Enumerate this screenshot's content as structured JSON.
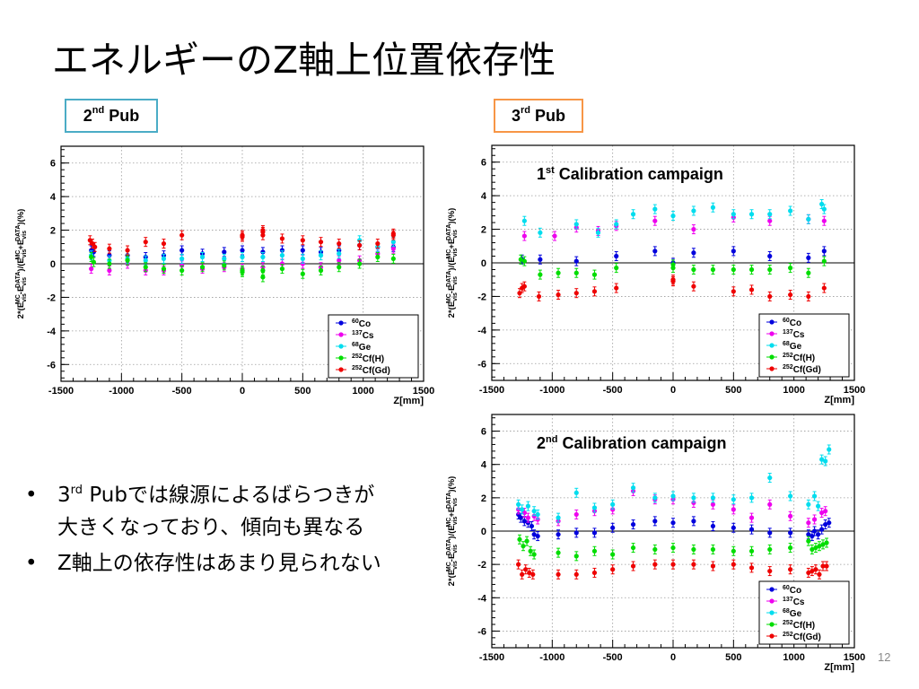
{
  "slide": {
    "title": "エネルギーのZ軸上位置依存性",
    "page_number": "12",
    "pub2": {
      "main": "2",
      "sup": "nd",
      "rest": " Pub"
    },
    "pub3": {
      "main": "3",
      "sup": "rd",
      "rest": " Pub"
    },
    "bullets": [
      {
        "lines": [
          {
            "pre": "3",
            "sup": "rd",
            "post": " Pubでは線源によるばらつきが"
          },
          {
            "pre": "大きくなっており、傾向も異なる",
            "sup": "",
            "post": ""
          }
        ]
      },
      {
        "lines": [
          {
            "pre": "Z軸上の依存性はあまり見られない",
            "sup": "",
            "post": ""
          }
        ]
      }
    ]
  },
  "chart_data": [
    {
      "type": "scatter",
      "annotation": "",
      "annotation_sup": "",
      "annotation_rest": "",
      "xlabel": "Z[mm]",
      "ylabel": "2*(E_vis^MC - E_vis^DATA)/(E_vis^MC + E_vis^DATA)(%)",
      "xlim": [
        -1500,
        1500
      ],
      "ylim": [
        -7,
        7
      ],
      "xticks": [
        -1500,
        -1000,
        -500,
        0,
        500,
        1000,
        1500
      ],
      "yticks": [
        -6,
        -4,
        -2,
        0,
        2,
        4,
        6
      ],
      "grid": true,
      "legend_position": "bottom-right",
      "series": [
        {
          "name": "60Co",
          "iso": "60",
          "el": "Co",
          "color": "#0000dd",
          "x": [
            -1250,
            -1230,
            -1100,
            -950,
            -800,
            -650,
            -500,
            -330,
            -150,
            0,
            170,
            330,
            500,
            650,
            800,
            970,
            1120,
            1250
          ],
          "y": [
            0.8,
            0.7,
            0.5,
            0.5,
            0.4,
            0.5,
            0.8,
            0.6,
            0.7,
            0.8,
            0.7,
            0.8,
            0.8,
            0.7,
            0.8,
            1.1,
            1.0,
            1.0
          ]
        },
        {
          "name": "137Cs",
          "iso": "137",
          "el": "Cs",
          "color": "#ee00ee",
          "x": [
            -1250,
            -1100,
            -950,
            -800,
            -650,
            -500,
            -330,
            -150,
            0,
            170,
            330,
            500,
            650,
            800,
            970,
            1120,
            1250
          ],
          "y": [
            -0.3,
            -0.4,
            0.0,
            -0.4,
            -0.4,
            -0.1,
            -0.3,
            -0.2,
            -0.3,
            -0.2,
            0.0,
            0.0,
            -0.2,
            0.2,
            0.2,
            0.6,
            0.9
          ]
        },
        {
          "name": "68Ge",
          "iso": "68",
          "el": "Ge",
          "color": "#00ddee",
          "x": [
            -1250,
            -1100,
            -950,
            -800,
            -650,
            -500,
            -330,
            -150,
            0,
            170,
            330,
            500,
            650,
            800,
            970,
            1120,
            1250
          ],
          "y": [
            0.5,
            0.2,
            0.3,
            0.2,
            0.3,
            0.3,
            0.4,
            0.3,
            0.4,
            0.4,
            0.5,
            0.3,
            0.5,
            0.6,
            1.4,
            1.0,
            1.3
          ]
        },
        {
          "name": "252Cf(H)",
          "iso": "252",
          "el": "Cf(H)",
          "color": "#00dd00",
          "x": [
            -1250,
            -1230,
            -1100,
            -950,
            -800,
            -650,
            -500,
            -330,
            -150,
            0,
            0,
            170,
            170,
            330,
            500,
            650,
            800,
            970,
            1120,
            1250
          ],
          "y": [
            0.4,
            0.1,
            0.0,
            0.2,
            -0.2,
            -0.3,
            -0.4,
            -0.2,
            -0.1,
            -0.5,
            -0.4,
            -0.8,
            -0.4,
            -0.3,
            -0.6,
            -0.4,
            -0.2,
            0.0,
            0.4,
            0.3
          ]
        },
        {
          "name": "252Cf(Gd)",
          "iso": "252",
          "el": "Cf(Gd)",
          "color": "#ee0000",
          "x": [
            -1260,
            -1240,
            -1220,
            -1100,
            -950,
            -800,
            -650,
            -500,
            0,
            0,
            170,
            170,
            170,
            330,
            500,
            650,
            800,
            970,
            1120,
            1250,
            1250
          ],
          "y": [
            1.4,
            1.2,
            1.0,
            0.9,
            0.8,
            1.3,
            1.2,
            1.7,
            1.6,
            1.7,
            1.7,
            1.9,
            2.0,
            1.5,
            1.4,
            1.3,
            1.2,
            1.1,
            1.2,
            1.7,
            1.8
          ]
        }
      ]
    },
    {
      "type": "scatter",
      "annotation": "1",
      "annotation_sup": "st",
      "annotation_rest": " Calibration campaign",
      "xlabel": "Z[mm]",
      "ylabel": "2*(E_vis^MC - E_vis^DATA)/(E_vis^MC + E_vis^DATA)(%)",
      "xlim": [
        -1500,
        1500
      ],
      "ylim": [
        -7,
        7
      ],
      "xticks": [
        -1500,
        -1000,
        -500,
        0,
        500,
        1000,
        1500
      ],
      "yticks": [
        -6,
        -4,
        -2,
        0,
        2,
        4,
        6
      ],
      "grid": true,
      "legend_position": "bottom-right",
      "series": [
        {
          "name": "60Co",
          "iso": "60",
          "el": "Co",
          "color": "#0000dd",
          "x": [
            -1250,
            -1100,
            -800,
            -470,
            -150,
            0,
            170,
            500,
            800,
            1120,
            1250
          ],
          "y": [
            0.2,
            0.2,
            0.1,
            0.4,
            0.7,
            0.0,
            0.6,
            0.7,
            0.4,
            0.3,
            0.7
          ]
        },
        {
          "name": "137Cs",
          "iso": "137",
          "el": "Cs",
          "color": "#ee00ee",
          "x": [
            -1230,
            -980,
            -800,
            -620,
            -470,
            -150,
            170,
            500,
            800,
            1120,
            1250
          ],
          "y": [
            1.6,
            1.6,
            2.1,
            1.9,
            2.2,
            2.5,
            2.0,
            2.7,
            2.5,
            2.6,
            2.5
          ]
        },
        {
          "name": "68Ge",
          "iso": "68",
          "el": "Ge",
          "color": "#00ddee",
          "x": [
            -1230,
            -1100,
            -800,
            -620,
            -470,
            -330,
            -150,
            0,
            170,
            330,
            500,
            650,
            800,
            970,
            1120,
            1230,
            1250
          ],
          "y": [
            2.5,
            1.8,
            2.3,
            1.8,
            2.3,
            2.9,
            3.2,
            2.8,
            3.1,
            3.3,
            2.9,
            2.9,
            2.9,
            3.1,
            2.6,
            3.5,
            3.2
          ]
        },
        {
          "name": "252Cf(H)",
          "iso": "252",
          "el": "Cf(H)",
          "color": "#00dd00",
          "x": [
            -1260,
            -1230,
            -1100,
            -950,
            -800,
            -650,
            -470,
            0,
            0,
            170,
            330,
            500,
            650,
            800,
            970,
            1120,
            1250
          ],
          "y": [
            0.2,
            0.1,
            -0.7,
            -0.6,
            -0.6,
            -0.7,
            -0.3,
            -0.1,
            -0.3,
            -0.4,
            -0.4,
            -0.4,
            -0.4,
            -0.4,
            -0.3,
            -0.6,
            0.1
          ]
        },
        {
          "name": "252Cf(Gd)",
          "iso": "252",
          "el": "Cf(Gd)",
          "color": "#ee0000",
          "x": [
            -1270,
            -1250,
            -1230,
            -1110,
            -950,
            -800,
            -650,
            -470,
            0,
            0,
            170,
            500,
            650,
            800,
            970,
            1120,
            1250
          ],
          "y": [
            -1.8,
            -1.5,
            -1.4,
            -2.0,
            -1.9,
            -1.8,
            -1.7,
            -1.5,
            -1.0,
            -1.1,
            -1.4,
            -1.7,
            -1.6,
            -2.0,
            -1.9,
            -2.0,
            -1.5
          ]
        }
      ]
    },
    {
      "type": "scatter",
      "annotation": "2",
      "annotation_sup": "nd",
      "annotation_rest": " Calibration campaign",
      "xlabel": "Z[mm]",
      "ylabel": "2*(E_vis^MC - E_vis^DATA)/(E_vis^MC + E_vis^DATA)(%)",
      "xlim": [
        -1500,
        1500
      ],
      "ylim": [
        -7,
        7
      ],
      "xticks": [
        -1500,
        -1000,
        -500,
        0,
        500,
        1000,
        1500
      ],
      "yticks": [
        -6,
        -4,
        -2,
        0,
        2,
        4,
        6
      ],
      "grid": true,
      "legend_position": "bottom-right",
      "series": [
        {
          "name": "60Co",
          "iso": "60",
          "el": "Co",
          "color": "#0000dd",
          "x": [
            -1280,
            -1260,
            -1230,
            -1200,
            -1170,
            -1150,
            -1120,
            -950,
            -800,
            -650,
            -500,
            -330,
            -150,
            0,
            170,
            330,
            500,
            650,
            800,
            970,
            1120,
            1150,
            1170,
            1200,
            1230,
            1260,
            1290
          ],
          "y": [
            1.0,
            0.8,
            0.6,
            0.5,
            0.3,
            -0.2,
            -0.3,
            -0.2,
            -0.1,
            -0.1,
            0.2,
            0.4,
            0.6,
            0.5,
            0.6,
            0.3,
            0.2,
            0.1,
            -0.1,
            -0.1,
            -0.2,
            -0.3,
            0.0,
            -0.2,
            0.1,
            0.4,
            0.5
          ]
        },
        {
          "name": "137Cs",
          "iso": "137",
          "el": "Cs",
          "color": "#ee00ee",
          "x": [
            -1280,
            -1230,
            -1200,
            -1150,
            -1120,
            -950,
            -800,
            -650,
            -500,
            -330,
            -150,
            0,
            170,
            330,
            500,
            650,
            800,
            970,
            1120,
            1170,
            1230,
            1260
          ],
          "y": [
            1.3,
            1.1,
            0.8,
            0.9,
            0.7,
            0.6,
            1.0,
            1.2,
            1.3,
            2.4,
            1.9,
            1.9,
            1.7,
            1.6,
            1.3,
            0.8,
            1.6,
            0.9,
            0.5,
            0.7,
            1.1,
            1.2
          ]
        },
        {
          "name": "68Ge",
          "iso": "68",
          "el": "Ge",
          "color": "#00ddee",
          "x": [
            -1280,
            -1250,
            -1200,
            -1150,
            -1120,
            -950,
            -800,
            -650,
            -500,
            -330,
            -150,
            0,
            170,
            330,
            500,
            650,
            800,
            970,
            1120,
            1170,
            1200,
            1230,
            1260,
            1290
          ],
          "y": [
            1.6,
            1.3,
            1.5,
            1.2,
            1.0,
            0.8,
            2.3,
            1.4,
            1.6,
            2.6,
            2.0,
            2.1,
            2.0,
            2.0,
            1.9,
            2.0,
            3.2,
            2.1,
            1.6,
            2.1,
            1.5,
            4.3,
            4.2,
            4.9
          ]
        },
        {
          "name": "252Cf(H)",
          "iso": "252",
          "el": "Cf(H)",
          "color": "#00dd00",
          "x": [
            -1270,
            -1240,
            -1210,
            -1180,
            -1150,
            -950,
            -800,
            -650,
            -500,
            -330,
            -150,
            0,
            170,
            330,
            500,
            650,
            800,
            970,
            1120,
            1150,
            1180,
            1210,
            1240,
            1270
          ],
          "y": [
            -0.5,
            -0.9,
            -0.6,
            -1.2,
            -1.4,
            -1.3,
            -1.5,
            -1.2,
            -1.4,
            -1.0,
            -1.1,
            -1.0,
            -1.1,
            -1.1,
            -1.2,
            -1.2,
            -1.1,
            -1.0,
            -0.6,
            -1.1,
            -1.0,
            -0.9,
            -0.8,
            -0.7
          ]
        },
        {
          "name": "252Cf(Gd)",
          "iso": "252",
          "el": "Cf(Gd)",
          "color": "#ee0000",
          "x": [
            -1280,
            -1250,
            -1220,
            -1190,
            -1160,
            -950,
            -800,
            -650,
            -500,
            -330,
            -150,
            0,
            170,
            330,
            500,
            650,
            800,
            970,
            1120,
            1150,
            1180,
            1210,
            1240,
            1270
          ],
          "y": [
            -2.0,
            -2.6,
            -2.3,
            -2.5,
            -2.6,
            -2.6,
            -2.6,
            -2.5,
            -2.3,
            -2.1,
            -2.0,
            -2.0,
            -2.0,
            -2.1,
            -2.0,
            -2.2,
            -2.4,
            -2.3,
            -2.5,
            -2.4,
            -2.3,
            -2.6,
            -2.1,
            -2.1
          ]
        }
      ]
    }
  ]
}
